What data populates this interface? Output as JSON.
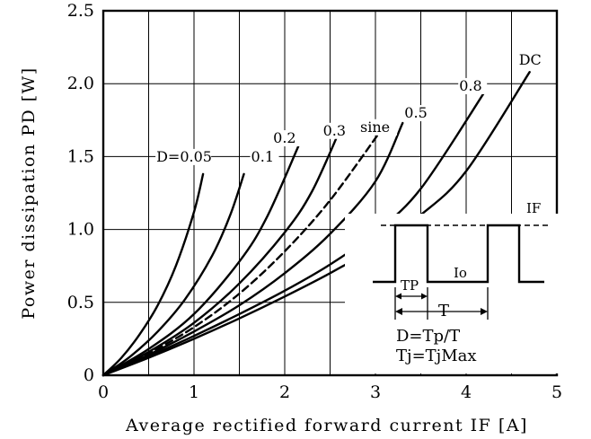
{
  "chart_data": {
    "type": "line",
    "xlabel": "Average rectified forward current IF [A]",
    "ylabel": "Power dissipation PD [W]",
    "xlim": [
      0,
      5
    ],
    "ylim": [
      0,
      2.5
    ],
    "x_ticks": [
      "0",
      "1",
      "2",
      "3",
      "4",
      "5"
    ],
    "y_ticks": [
      "0",
      "0.5",
      "1.0",
      "1.5",
      "2.0",
      "2.5"
    ],
    "grid": true,
    "series": [
      {
        "name": "D=0.05",
        "style": "solid",
        "x": [
          0,
          0.2,
          0.4,
          0.6,
          0.8,
          1.0,
          1.1
        ],
        "y": [
          0,
          0.12,
          0.28,
          0.48,
          0.75,
          1.12,
          1.38
        ]
      },
      {
        "name": "0.1",
        "style": "solid",
        "x": [
          0,
          0.3,
          0.6,
          0.9,
          1.2,
          1.4,
          1.55
        ],
        "y": [
          0,
          0.13,
          0.3,
          0.52,
          0.82,
          1.1,
          1.38
        ]
      },
      {
        "name": "0.2",
        "style": "solid",
        "x": [
          0,
          0.5,
          1.0,
          1.5,
          1.8,
          2.15
        ],
        "y": [
          0,
          0.18,
          0.42,
          0.78,
          1.08,
          1.57
        ]
      },
      {
        "name": "0.3",
        "style": "solid",
        "x": [
          0,
          0.5,
          1.0,
          1.5,
          2.0,
          2.3,
          2.6
        ],
        "y": [
          0,
          0.16,
          0.36,
          0.63,
          0.98,
          1.26,
          1.67
        ]
      },
      {
        "name": "sine",
        "style": "dashed",
        "x": [
          0,
          0.5,
          1.0,
          1.5,
          2.0,
          2.5,
          3.05
        ],
        "y": [
          0,
          0.15,
          0.33,
          0.56,
          0.85,
          1.2,
          1.67
        ]
      },
      {
        "name": "0.5",
        "style": "solid",
        "x": [
          0,
          0.5,
          1.0,
          1.5,
          2.0,
          2.5,
          3.0,
          3.3
        ],
        "y": [
          0,
          0.14,
          0.3,
          0.48,
          0.7,
          0.97,
          1.33,
          1.73
        ]
      },
      {
        "name": "0.8",
        "style": "solid",
        "x": [
          0,
          0.5,
          1.0,
          1.5,
          2.0,
          2.5,
          3.0,
          3.5,
          4.2
        ],
        "y": [
          0,
          0.13,
          0.27,
          0.42,
          0.58,
          0.76,
          0.98,
          1.28,
          1.94
        ]
      },
      {
        "name": "DC",
        "style": "solid",
        "x": [
          0,
          0.5,
          1.0,
          1.5,
          2.0,
          2.5,
          3.0,
          3.5,
          4.0,
          4.7
        ],
        "y": [
          0,
          0.12,
          0.25,
          0.39,
          0.54,
          0.7,
          0.88,
          1.1,
          1.4,
          2.08
        ]
      }
    ],
    "inset": {
      "labels": {
        "if": "IF",
        "tp": "TP",
        "io": "Io",
        "t": "T"
      },
      "equations": [
        "D=Tp/T",
        "Tj=TjMax"
      ]
    }
  }
}
